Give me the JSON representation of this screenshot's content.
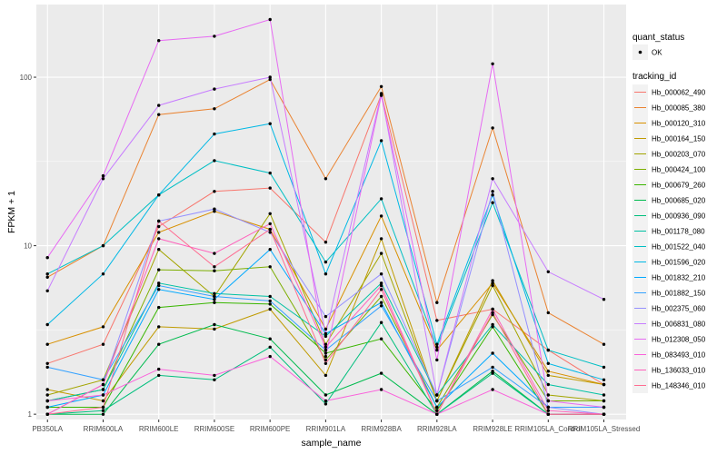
{
  "chart_data": {
    "type": "line",
    "title": "",
    "xlabel": "sample_name",
    "ylabel": "FPKM + 1",
    "y_scale": "log10",
    "ylim": [
      0.93,
      270
    ],
    "y_ticks": [
      1,
      10,
      100
    ],
    "y_tick_labels": [
      "1",
      "10",
      "100"
    ],
    "grid": true,
    "legend_position": "right",
    "x": [
      "PB350LA",
      "RRIM600LA",
      "RRIM600LE",
      "RRIM600SE",
      "RRIM600PE",
      "RRIM901LA",
      "RRIM928BA",
      "RRIM928LA",
      "RRIM928LE",
      "RRIM105LA_Control",
      "RRIM105LA_Stressed"
    ],
    "legend_quant": {
      "title": "quant_status",
      "items": [
        "OK"
      ]
    },
    "legend_tracking_title": "tracking_id",
    "series": [
      {
        "name": "Hb_000062_490",
        "color": "#F8766D",
        "values": [
          2.0,
          2.6,
          13.0,
          21.0,
          22.0,
          10.5,
          79,
          3.6,
          4.2,
          2.4,
          1.5
        ]
      },
      {
        "name": "Hb_000085_380",
        "color": "#EA8331",
        "values": [
          6.5,
          10.0,
          60.0,
          65.0,
          97.0,
          25.0,
          88,
          4.6,
          50.0,
          4.0,
          2.6
        ]
      },
      {
        "name": "Hb_000120_310",
        "color": "#D89000",
        "values": [
          2.6,
          3.3,
          12.0,
          16.0,
          12.5,
          3.2,
          15.0,
          2.4,
          6.0,
          1.8,
          1.5
        ]
      },
      {
        "name": "Hb_000164_150",
        "color": "#C09B00",
        "values": [
          1.4,
          1.2,
          3.3,
          3.2,
          4.2,
          1.7,
          11.0,
          1.2,
          6.2,
          1.7,
          1.5
        ]
      },
      {
        "name": "Hb_000203_070",
        "color": "#A3A500",
        "values": [
          1.3,
          1.6,
          9.5,
          5.0,
          15.5,
          2.6,
          9.0,
          1.2,
          5.8,
          1.3,
          1.2
        ]
      },
      {
        "name": "Hb_000424_100",
        "color": "#7CAE00",
        "values": [
          1.2,
          1.4,
          7.2,
          7.1,
          7.5,
          2.1,
          5.0,
          1.1,
          3.9,
          1.2,
          1.2
        ]
      },
      {
        "name": "Hb_000679_260",
        "color": "#39B600",
        "values": [
          1.1,
          1.1,
          4.3,
          4.6,
          4.5,
          2.3,
          2.8,
          1.05,
          3.3,
          1.0,
          1.0
        ]
      },
      {
        "name": "Hb_000685_020",
        "color": "#00BB4E",
        "values": [
          1.0,
          1.0,
          2.6,
          3.4,
          2.8,
          1.3,
          1.75,
          1.0,
          1.8,
          1.0,
          1.0
        ]
      },
      {
        "name": "Hb_000936_090",
        "color": "#00BF7D",
        "values": [
          1.0,
          1.05,
          1.7,
          1.6,
          2.5,
          1.15,
          3.5,
          1.0,
          1.75,
          1.0,
          1.0
        ]
      },
      {
        "name": "Hb_001178_080",
        "color": "#00C1A3",
        "values": [
          1.2,
          1.4,
          6.0,
          5.2,
          5.0,
          2.9,
          6.0,
          1.3,
          3.4,
          1.5,
          1.3
        ]
      },
      {
        "name": "Hb_001522_040",
        "color": "#00BFC4",
        "values": [
          6.8,
          10.0,
          20.0,
          32.0,
          27.0,
          8.0,
          19.0,
          2.5,
          18.0,
          2.4,
          1.9
        ]
      },
      {
        "name": "Hb_001596_020",
        "color": "#00B8E5",
        "values": [
          3.4,
          6.8,
          20.0,
          46.0,
          53.0,
          6.8,
          42.0,
          2.6,
          20.0,
          2.0,
          1.6
        ]
      },
      {
        "name": "Hb_001832_210",
        "color": "#00A9FF",
        "values": [
          1.1,
          1.3,
          5.5,
          4.8,
          9.5,
          3.0,
          4.6,
          1.1,
          2.3,
          1.1,
          1.1
        ]
      },
      {
        "name": "Hb_001882_150",
        "color": "#35A2FF",
        "values": [
          1.9,
          1.6,
          5.8,
          5.0,
          4.7,
          2.4,
          4.4,
          1.2,
          1.9,
          1.1,
          1.1
        ]
      },
      {
        "name": "Hb_002375_060",
        "color": "#9590FF",
        "values": [
          1.0,
          1.5,
          14.0,
          16.5,
          12.0,
          3.8,
          6.8,
          1.3,
          21.0,
          1.1,
          1.0
        ]
      },
      {
        "name": "Hb_006831_080",
        "color": "#C77CFF",
        "values": [
          5.4,
          25.0,
          68.0,
          85.0,
          100.0,
          3.0,
          80.0,
          1.3,
          25.0,
          7.0,
          4.8
        ]
      },
      {
        "name": "Hb_012308_050",
        "color": "#E76BF3",
        "values": [
          8.5,
          26.0,
          165.0,
          175.0,
          220.0,
          2.2,
          78.0,
          2.1,
          120.0,
          1.2,
          1.1
        ]
      },
      {
        "name": "Hb_083493_010",
        "color": "#FA62DB",
        "values": [
          1.2,
          1.3,
          1.85,
          1.7,
          2.2,
          1.2,
          1.4,
          1.0,
          1.4,
          1.0,
          1.0
        ]
      },
      {
        "name": "Hb_136033_010",
        "color": "#FF62BC",
        "values": [
          1.0,
          1.5,
          11.0,
          9.0,
          13.5,
          2.5,
          5.8,
          1.0,
          4.2,
          1.05,
          1.0
        ]
      },
      {
        "name": "Hb_148346_010",
        "color": "#FF6C91",
        "values": [
          1.0,
          1.1,
          14.0,
          7.5,
          12.5,
          2.0,
          5.5,
          1.0,
          4.0,
          1.0,
          1.0
        ]
      }
    ]
  }
}
